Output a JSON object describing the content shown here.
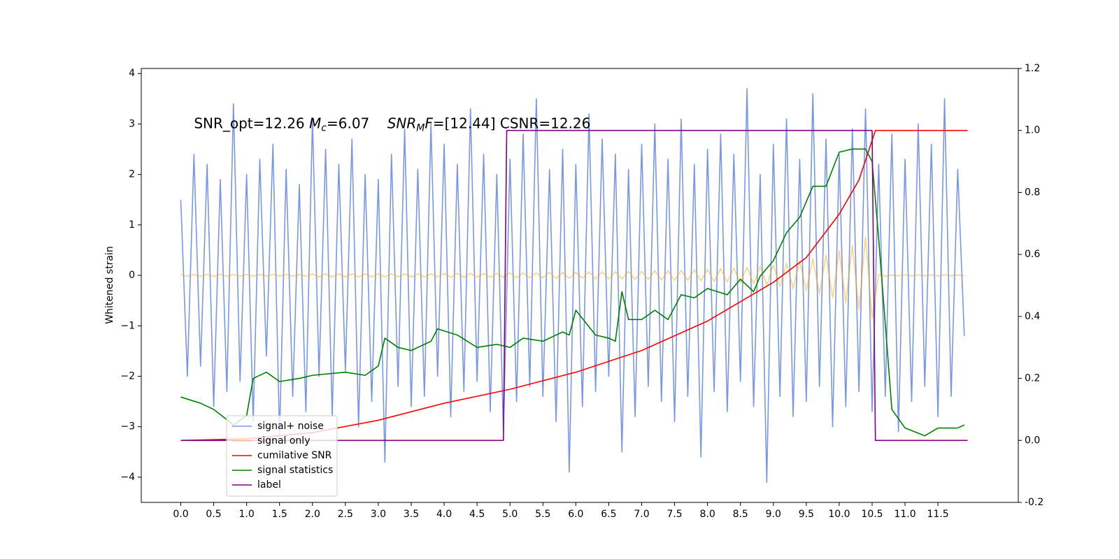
{
  "chart_data": {
    "type": "line",
    "annotation": [
      {
        "text": "SNR_opt=12.26 "
      },
      {
        "text": "M",
        "style": "italic"
      },
      {
        "text": "c",
        "style": "sub"
      },
      {
        "text": "=6.07    "
      },
      {
        "text": "SNR",
        "style": "italic"
      },
      {
        "text": "M",
        "style": "sub"
      },
      {
        "text": "F",
        "style": "italic"
      },
      {
        "text": "=[12.44] CSNR=12.26"
      }
    ],
    "ylabel": "Whitened strain",
    "xlim": [
      -0.6,
      12.72
    ],
    "ylim": [
      -4.5,
      4.1
    ],
    "y2lim": [
      -0.2,
      1.2
    ],
    "xticks": [
      {
        "value": 0,
        "label": "0.0"
      },
      0.5,
      {
        "value": 1,
        "label": "1.0"
      },
      1.5,
      {
        "value": 2,
        "label": "2.0"
      },
      2.5,
      {
        "value": 3,
        "label": "3.0"
      },
      3.5,
      {
        "value": 4,
        "label": "4.0"
      },
      4.5,
      {
        "value": 5,
        "label": "5.0"
      },
      5.5,
      {
        "value": 6,
        "label": "6.0"
      },
      6.5,
      {
        "value": 7,
        "label": "7.0"
      },
      7.5,
      {
        "value": 8,
        "label": "8.0"
      },
      8.5,
      {
        "value": 9,
        "label": "9.0"
      },
      9.5,
      {
        "value": 10,
        "label": "10.0"
      },
      10.5,
      {
        "value": 11,
        "label": "11.0"
      },
      11.5
    ],
    "yticks": [
      {
        "value": -4,
        "label": "−4"
      },
      {
        "value": -3,
        "label": "−3"
      },
      {
        "value": -2,
        "label": "−2"
      },
      {
        "value": -1,
        "label": "−1"
      },
      0,
      1,
      2,
      3,
      4
    ],
    "y2ticks": [
      -0.2,
      {
        "value": 0,
        "label": "0.0"
      },
      0.2,
      0.4,
      0.6,
      0.8,
      {
        "value": 1,
        "label": "1.0"
      },
      1.2
    ],
    "legend": "lower left",
    "series": [
      {
        "name": "signal+ noise",
        "color": "#4169e1",
        "alpha": 0.7,
        "x": [
          0,
          0.1,
          0.2,
          0.3,
          0.4,
          0.5,
          0.6,
          0.7,
          0.8,
          0.9,
          1,
          1.1,
          1.2,
          1.3,
          1.4,
          1.5,
          1.6,
          1.7,
          1.8,
          1.9,
          2,
          2.1,
          2.2,
          2.3,
          2.4,
          2.5,
          2.6,
          2.7,
          2.8,
          2.9,
          3,
          3.1,
          3.2,
          3.3,
          3.4,
          3.5,
          3.6,
          3.7,
          3.8,
          3.9,
          4,
          4.1,
          4.2,
          4.3,
          4.4,
          4.5,
          4.6,
          4.7,
          4.8,
          4.9,
          5,
          5.1,
          5.2,
          5.3,
          5.4,
          5.5,
          5.6,
          5.7,
          5.8,
          5.9,
          6,
          6.1,
          6.2,
          6.3,
          6.4,
          6.5,
          6.6,
          6.7,
          6.8,
          6.9,
          7,
          7.1,
          7.2,
          7.3,
          7.4,
          7.5,
          7.6,
          7.7,
          7.8,
          7.9,
          8,
          8.1,
          8.2,
          8.3,
          8.4,
          8.5,
          8.6,
          8.7,
          8.8,
          8.9,
          9,
          9.1,
          9.2,
          9.3,
          9.4,
          9.5,
          9.6,
          9.7,
          9.8,
          9.9,
          10,
          10.1,
          10.2,
          10.3,
          10.4,
          10.5,
          10.6,
          10.7,
          10.8,
          10.9,
          11,
          11.1,
          11.2,
          11.3,
          11.4,
          11.5,
          11.6,
          11.7,
          11.8,
          11.9
        ],
        "values": [
          1.5,
          -2.0,
          2.4,
          -1.8,
          2.2,
          -2.6,
          1.9,
          -2.3,
          3.4,
          -2.1,
          2.0,
          -2.9,
          2.3,
          -1.6,
          2.6,
          -3.2,
          2.1,
          -2.4,
          1.8,
          -2.7,
          3.1,
          -2.0,
          2.5,
          -2.8,
          2.2,
          -1.9,
          2.7,
          -3.0,
          2.0,
          -2.5,
          1.9,
          -3.7,
          2.4,
          -2.2,
          2.9,
          -2.6,
          2.1,
          -2.4,
          3.0,
          -2.0,
          2.6,
          -2.8,
          2.2,
          -2.3,
          3.3,
          -2.1,
          2.4,
          -2.7,
          2.0,
          -3.1,
          2.3,
          -2.5,
          2.8,
          -2.2,
          3.5,
          -2.4,
          2.1,
          -2.9,
          2.5,
          -3.9,
          2.2,
          -2.6,
          3.2,
          -2.3,
          2.7,
          -2.0,
          2.4,
          -3.5,
          2.1,
          -2.8,
          2.6,
          -2.2,
          3.0,
          -2.5,
          2.3,
          -2.9,
          3.1,
          -2.4,
          2.2,
          -3.6,
          2.5,
          -2.3,
          2.8,
          -2.7,
          2.4,
          -2.1,
          3.7,
          -2.6,
          2.0,
          -4.1,
          2.6,
          -2.4,
          3.1,
          -2.8,
          2.3,
          -2.5,
          3.6,
          -2.2,
          2.7,
          -3.0,
          2.4,
          -2.6,
          2.9,
          -2.3,
          3.3,
          -2.7,
          2.2,
          -2.4,
          2.8,
          -3.1,
          2.3,
          -2.5,
          3.0,
          -2.2,
          2.6,
          -2.8,
          3.5,
          -2.4,
          2.1,
          -1.2
        ]
      },
      {
        "name": "signal only",
        "color": "#ffa500",
        "alpha": 0.5,
        "x": [
          0,
          0.1,
          0.2,
          0.3,
          0.4,
          0.5,
          0.6,
          0.7,
          0.8,
          0.9,
          1,
          1.1,
          1.2,
          1.3,
          1.4,
          1.5,
          1.6,
          1.7,
          1.8,
          1.9,
          2,
          2.1,
          2.2,
          2.3,
          2.4,
          2.5,
          2.6,
          2.7,
          2.8,
          2.9,
          3,
          3.1,
          3.2,
          3.3,
          3.4,
          3.5,
          3.6,
          3.7,
          3.8,
          3.9,
          4,
          4.1,
          4.2,
          4.3,
          4.4,
          4.5,
          4.6,
          4.7,
          4.8,
          4.9,
          5,
          5.1,
          5.2,
          5.3,
          5.4,
          5.5,
          5.6,
          5.7,
          5.8,
          5.9,
          6,
          6.1,
          6.2,
          6.3,
          6.4,
          6.5,
          6.6,
          6.7,
          6.8,
          6.9,
          7,
          7.1,
          7.2,
          7.3,
          7.4,
          7.5,
          7.6,
          7.7,
          7.8,
          7.9,
          8,
          8.1,
          8.2,
          8.3,
          8.4,
          8.5,
          8.6,
          8.7,
          8.8,
          8.9,
          9,
          9.1,
          9.2,
          9.3,
          9.4,
          9.5,
          9.6,
          9.7,
          9.8,
          9.9,
          10,
          10.1,
          10.2,
          10.3,
          10.4,
          10.5,
          10.6,
          10.7,
          10.8,
          10.9,
          11,
          11.1,
          11.2,
          11.3,
          11.4,
          11.5,
          11.6,
          11.7,
          11.8,
          11.9
        ],
        "values": [
          0.02,
          -0.02,
          0.02,
          -0.02,
          0.02,
          -0.02,
          0.02,
          -0.02,
          0.02,
          -0.02,
          0.02,
          -0.02,
          0.02,
          -0.02,
          0.02,
          -0.02,
          0.02,
          -0.02,
          0.02,
          -0.02,
          0.03,
          -0.03,
          0.03,
          -0.03,
          0.03,
          -0.03,
          0.03,
          -0.03,
          0.03,
          -0.03,
          0.03,
          -0.03,
          0.03,
          -0.03,
          0.03,
          -0.03,
          0.03,
          -0.03,
          0.03,
          -0.03,
          0.04,
          -0.04,
          0.04,
          -0.04,
          0.04,
          -0.04,
          0.04,
          -0.04,
          0.04,
          -0.04,
          0.05,
          -0.05,
          0.05,
          -0.05,
          0.05,
          -0.05,
          0.06,
          -0.06,
          0.06,
          -0.06,
          0.06,
          -0.06,
          0.07,
          -0.07,
          0.07,
          -0.07,
          0.07,
          -0.07,
          0.08,
          -0.08,
          0.08,
          -0.08,
          0.09,
          -0.09,
          0.09,
          -0.1,
          0.1,
          -0.1,
          0.11,
          -0.11,
          0.12,
          -0.12,
          0.13,
          -0.13,
          0.14,
          -0.15,
          0.16,
          -0.17,
          0.18,
          -0.19,
          0.2,
          -0.22,
          0.24,
          -0.26,
          0.28,
          -0.3,
          0.33,
          -0.36,
          0.4,
          -0.44,
          0.48,
          -0.54,
          0.6,
          -0.68,
          0.76,
          -0.85,
          0.02,
          -0.02,
          0.01,
          -0.01,
          0.01,
          -0.01,
          0.01,
          -0.01,
          0.01,
          -0.01,
          0.01,
          -0.01,
          0.01,
          -0.01
        ]
      },
      {
        "name": "cumilative SNR",
        "color": "#ff0000",
        "axis": "y2",
        "x": [
          0,
          1,
          2,
          3,
          4,
          5,
          6,
          7,
          8,
          9,
          9.5,
          10,
          10.3,
          10.55,
          11.95
        ],
        "values": [
          0,
          0.005,
          0.025,
          0.065,
          0.12,
          0.165,
          0.22,
          0.29,
          0.385,
          0.51,
          0.59,
          0.73,
          0.84,
          1.0,
          1.0
        ]
      },
      {
        "name": "signal statistics",
        "color": "#008000",
        "axis": "y2",
        "x": [
          0,
          0.3,
          0.5,
          0.8,
          1.0,
          1.1,
          1.3,
          1.5,
          1.8,
          2.0,
          2.5,
          2.8,
          3.0,
          3.1,
          3.3,
          3.5,
          3.8,
          3.9,
          4.2,
          4.5,
          4.8,
          5.0,
          5.2,
          5.5,
          5.8,
          5.9,
          6.0,
          6.3,
          6.5,
          6.6,
          6.7,
          6.8,
          7.0,
          7.2,
          7.4,
          7.6,
          7.8,
          8.0,
          8.3,
          8.5,
          8.7,
          8.8,
          9.0,
          9.2,
          9.4,
          9.6,
          9.8,
          10.0,
          10.2,
          10.4,
          10.5,
          10.6,
          10.8,
          11.0,
          11.3,
          11.5,
          11.8,
          11.9
        ],
        "values": [
          0.14,
          0.12,
          0.1,
          0.05,
          0.08,
          0.2,
          0.22,
          0.19,
          0.2,
          0.21,
          0.22,
          0.21,
          0.24,
          0.33,
          0.3,
          0.29,
          0.32,
          0.36,
          0.34,
          0.3,
          0.31,
          0.3,
          0.33,
          0.32,
          0.35,
          0.34,
          0.42,
          0.34,
          0.33,
          0.32,
          0.48,
          0.39,
          0.39,
          0.42,
          0.39,
          0.47,
          0.46,
          0.49,
          0.47,
          0.52,
          0.48,
          0.53,
          0.58,
          0.67,
          0.72,
          0.82,
          0.82,
          0.93,
          0.94,
          0.94,
          0.9,
          0.65,
          0.1,
          0.04,
          0.015,
          0.04,
          0.04,
          0.05
        ]
      },
      {
        "name": "label",
        "color": "#800080",
        "axis": "y2",
        "x": [
          0,
          4.9,
          4.95,
          10.5,
          10.55,
          11.95
        ],
        "values": [
          0,
          0,
          1,
          1,
          0,
          0
        ]
      }
    ]
  }
}
